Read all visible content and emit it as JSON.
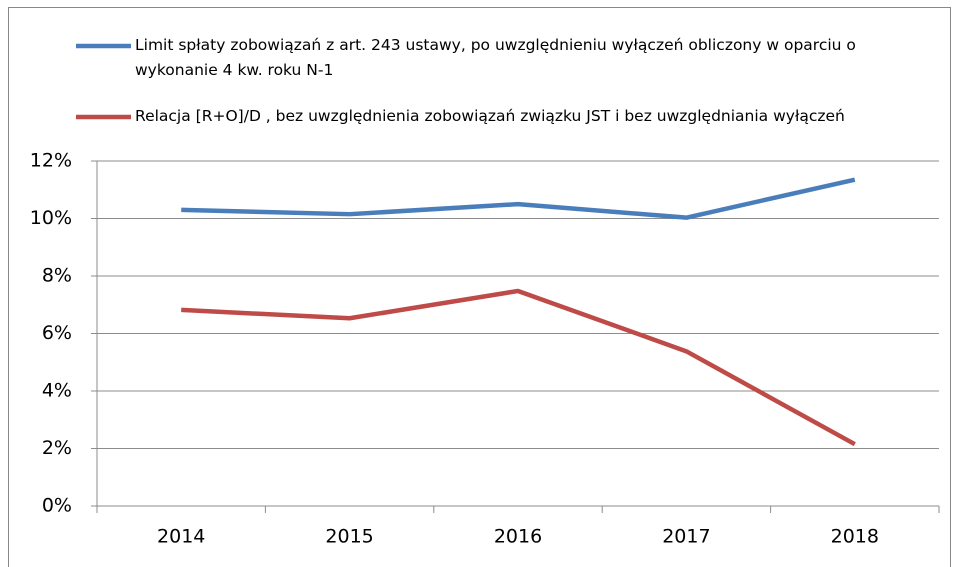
{
  "chart_data": {
    "type": "line",
    "categories": [
      "2014",
      "2015",
      "2016",
      "2017",
      "2018"
    ],
    "series": [
      {
        "name": "Limit spłaty zobowiązań z art. 243 ustawy, po uwzględnieniu wyłączeń obliczony w oparciu o wykonanie 4 kw. roku N-1",
        "color": "#4a7ebb",
        "values": [
          10.3,
          10.15,
          10.5,
          10.03,
          11.35
        ]
      },
      {
        "name": "Relacja [R+O]/D , bez uwzględnienia zobowiązań związku JST i bez uwzględniania wyłączeń",
        "color": "#be4b48",
        "values": [
          6.82,
          6.53,
          7.48,
          5.38,
          2.15
        ]
      }
    ],
    "ylim": [
      0,
      12
    ],
    "yticks": [
      {
        "value": 0,
        "label": "0%"
      },
      {
        "value": 2,
        "label": "2%"
      },
      {
        "value": 4,
        "label": "4%"
      },
      {
        "value": 6,
        "label": "6%"
      },
      {
        "value": 8,
        "label": "8%"
      },
      {
        "value": 10,
        "label": "10%"
      },
      {
        "value": 12,
        "label": "12%"
      }
    ],
    "grid": true
  }
}
